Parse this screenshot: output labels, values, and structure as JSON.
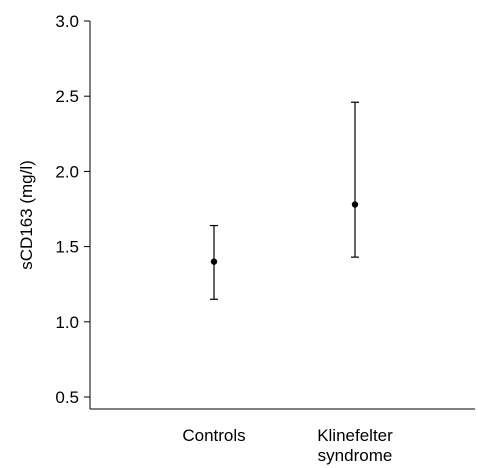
{
  "chart_data": {
    "type": "scatter",
    "style": "point-with-error-bars",
    "title": "",
    "xlabel": "",
    "ylabel": "sCD163 (mg/l)",
    "ylim": [
      0.4,
      3.0
    ],
    "yticks": [
      0.5,
      1.0,
      1.5,
      2.0,
      2.5,
      3.0
    ],
    "ytick_labels": [
      "0.5",
      "1.0",
      "1.5",
      "2.0",
      "2.5",
      "3.0"
    ],
    "categories": [
      "Controls",
      "Klinefelter syndrome"
    ],
    "category_label_lines": [
      [
        "Controls"
      ],
      [
        "Klinefelter",
        "syndrome"
      ]
    ],
    "points": [
      {
        "category": "Controls",
        "value": 1.4,
        "lower": 1.15,
        "upper": 1.64
      },
      {
        "category": "Klinefelter syndrome",
        "value": 1.78,
        "lower": 1.43,
        "upper": 2.46
      }
    ],
    "grid": false,
    "legend": "none",
    "colors": {
      "marker": "#000000",
      "axis": "#000000"
    }
  }
}
